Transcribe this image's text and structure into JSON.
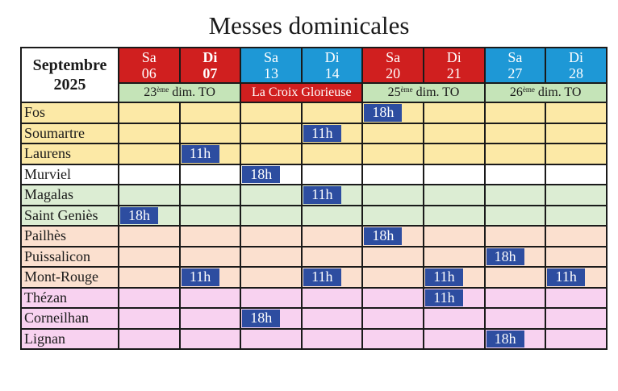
{
  "title": "Messes dominicales",
  "month_label_line1": "Septembre",
  "month_label_line2": "2025",
  "days": [
    {
      "dow": "Sa",
      "date": "06",
      "style": "sat-red"
    },
    {
      "dow": "Di",
      "date": "07",
      "style": "sun-red"
    },
    {
      "dow": "Sa",
      "date": "13",
      "style": "blue"
    },
    {
      "dow": "Di",
      "date": "14",
      "style": "blue"
    },
    {
      "dow": "Sa",
      "date": "20",
      "style": "sat-red"
    },
    {
      "dow": "Di",
      "date": "21",
      "style": "sat-red"
    },
    {
      "dow": "Sa",
      "date": "27",
      "style": "blue"
    },
    {
      "dow": "Di",
      "date": "28",
      "style": "blue"
    }
  ],
  "feasts": [
    {
      "num": "23",
      "sup": "ème",
      "text": "dim. TO",
      "style": "green"
    },
    {
      "num": "",
      "sup": "",
      "text": "La Croix Glorieuse",
      "style": "red"
    },
    {
      "num": "25",
      "sup": "ème",
      "text": "dim. TO",
      "style": "green"
    },
    {
      "num": "26",
      "sup": "ème",
      "text": "dim. TO",
      "style": "green"
    }
  ],
  "parishes": [
    {
      "name": "Fos",
      "group": "yellow",
      "slots": [
        "",
        "",
        "",
        "",
        "18h",
        "",
        "",
        ""
      ]
    },
    {
      "name": "Soumartre",
      "group": "yellow",
      "slots": [
        "",
        "",
        "",
        "11h",
        "",
        "",
        "",
        ""
      ]
    },
    {
      "name": "Laurens",
      "group": "yellow",
      "slots": [
        "",
        "11h",
        "",
        "",
        "",
        "",
        "",
        ""
      ]
    },
    {
      "name": "Murviel",
      "group": "white",
      "slots": [
        "",
        "",
        "18h",
        "",
        "",
        "",
        "",
        ""
      ]
    },
    {
      "name": "Magalas",
      "group": "lgreen",
      "slots": [
        "",
        "",
        "",
        "11h",
        "",
        "",
        "",
        ""
      ]
    },
    {
      "name": "Saint Geniès",
      "group": "lgreen",
      "slots": [
        "18h",
        "",
        "",
        "",
        "",
        "",
        "",
        ""
      ]
    },
    {
      "name": "Pailhès",
      "group": "peach",
      "slots": [
        "",
        "",
        "",
        "",
        "18h",
        "",
        "",
        ""
      ]
    },
    {
      "name": "Puissalicon",
      "group": "peach",
      "slots": [
        "",
        "",
        "",
        "",
        "",
        "",
        "18h",
        ""
      ]
    },
    {
      "name": "Mont-Rouge",
      "group": "peach",
      "slots": [
        "",
        "11h",
        "",
        "11h",
        "",
        "11h",
        "",
        "11h"
      ]
    },
    {
      "name": "Thézan",
      "group": "pink",
      "slots": [
        "",
        "",
        "",
        "",
        "",
        "11h",
        "",
        ""
      ]
    },
    {
      "name": "Corneilhan",
      "group": "pink",
      "slots": [
        "",
        "",
        "18h",
        "",
        "",
        "",
        "",
        ""
      ]
    },
    {
      "name": "Lignan",
      "group": "pink",
      "slots": [
        "",
        "",
        "",
        "",
        "",
        "",
        "18h",
        ""
      ]
    }
  ]
}
